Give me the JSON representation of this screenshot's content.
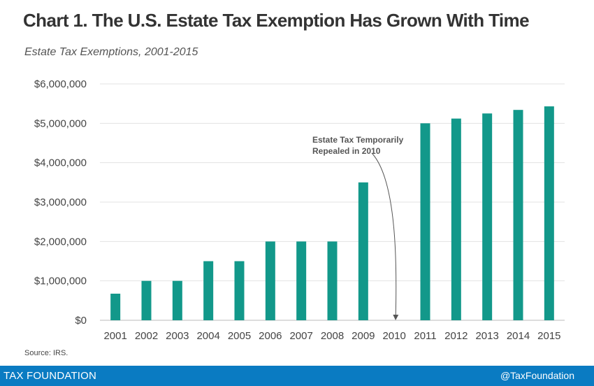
{
  "chart_data": {
    "type": "bar",
    "title": "Chart 1. The U.S. Estate Tax Exemption Has Grown With Time",
    "subtitle": "Estate Tax Exemptions, 2001-2015",
    "xlabel": "",
    "ylabel": "",
    "ylim": [
      0,
      6000000
    ],
    "yticks": [
      0,
      1000000,
      2000000,
      3000000,
      4000000,
      5000000,
      6000000
    ],
    "ytick_labels": [
      "$0",
      "$1,000,000",
      "$2,000,000",
      "$3,000,000",
      "$4,000,000",
      "$5,000,000",
      "$6,000,000"
    ],
    "categories": [
      "2001",
      "2002",
      "2003",
      "2004",
      "2005",
      "2006",
      "2007",
      "2008",
      "2009",
      "2010",
      "2011",
      "2012",
      "2013",
      "2014",
      "2015"
    ],
    "values": [
      675000,
      1000000,
      1000000,
      1500000,
      1500000,
      2000000,
      2000000,
      2000000,
      3500000,
      0,
      5000000,
      5120000,
      5250000,
      5340000,
      5430000
    ],
    "bar_color": "#12988a",
    "grid": true,
    "annotation": {
      "lines": [
        "Estate Tax Temporarily",
        "Repealed in 2010"
      ],
      "target_category": "2010"
    }
  },
  "source": "Source: IRS.",
  "footer": {
    "brand": "TAX FOUNDATION",
    "handle": "@TaxFoundation"
  }
}
